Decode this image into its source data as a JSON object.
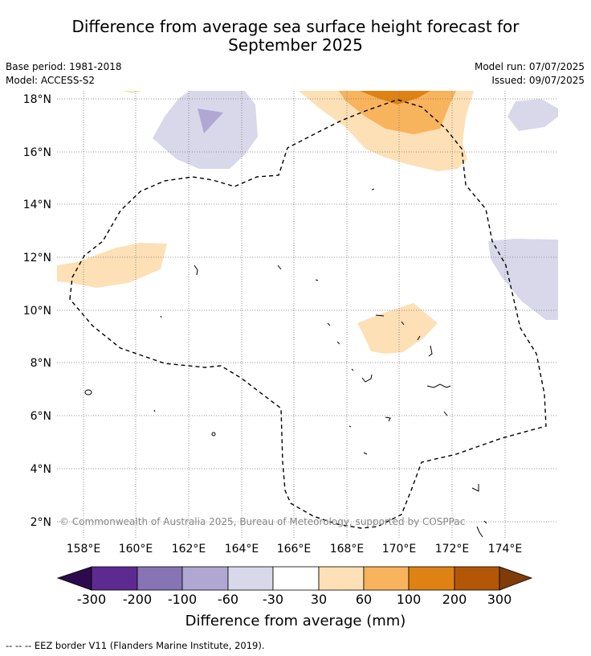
{
  "title_line1": "Difference from average sea surface height forecast for",
  "title_line2": "September 2025",
  "meta": {
    "base_period": "Base period: 1981-2018",
    "model": "Model: ACCESS-S2",
    "model_run": "Model run: 07/07/2025",
    "issued": "Issued: 09/07/2025"
  },
  "map": {
    "lon_range": [
      157,
      176
    ],
    "lat_range": [
      1.4,
      18.3
    ],
    "lat_ticks": [
      {
        "value": 18,
        "label": "18°N"
      },
      {
        "value": 16,
        "label": "16°N"
      },
      {
        "value": 14,
        "label": "14°N"
      },
      {
        "value": 12,
        "label": "12°N"
      },
      {
        "value": 10,
        "label": "10°N"
      },
      {
        "value": 8,
        "label": "8°N"
      },
      {
        "value": 6,
        "label": "6°N"
      },
      {
        "value": 4,
        "label": "4°N"
      },
      {
        "value": 2,
        "label": "2°N"
      }
    ],
    "lon_ticks": [
      {
        "value": 158,
        "label": "158°E"
      },
      {
        "value": 160,
        "label": "160°E"
      },
      {
        "value": 162,
        "label": "162°E"
      },
      {
        "value": 164,
        "label": "164°E"
      },
      {
        "value": 166,
        "label": "166°E"
      },
      {
        "value": 168,
        "label": "168°E"
      },
      {
        "value": 170,
        "label": "170°E"
      },
      {
        "value": 172,
        "label": "172°E"
      },
      {
        "value": 174,
        "label": "174°E"
      }
    ],
    "watermark": "© Commonwealth of Australia 2025, Bureau of Meteorology, supported by COSPPac"
  },
  "colorbar": {
    "label": "Difference from average (mm)",
    "tick_labels": [
      "-300",
      "-200",
      "-100",
      "-60",
      "-30",
      "30",
      "60",
      "100",
      "200",
      "300"
    ],
    "colors": [
      "#2d0a4e",
      "#5c2a91",
      "#8674b4",
      "#b0a7d2",
      "#d8d8ea",
      "#ffffff",
      "#fde0b5",
      "#f8b35d",
      "#e08213",
      "#b35706",
      "#7f3b08"
    ]
  },
  "footer": "--  --  -- EEZ border V11 (Flanders Marine Institute, 2019)."
}
